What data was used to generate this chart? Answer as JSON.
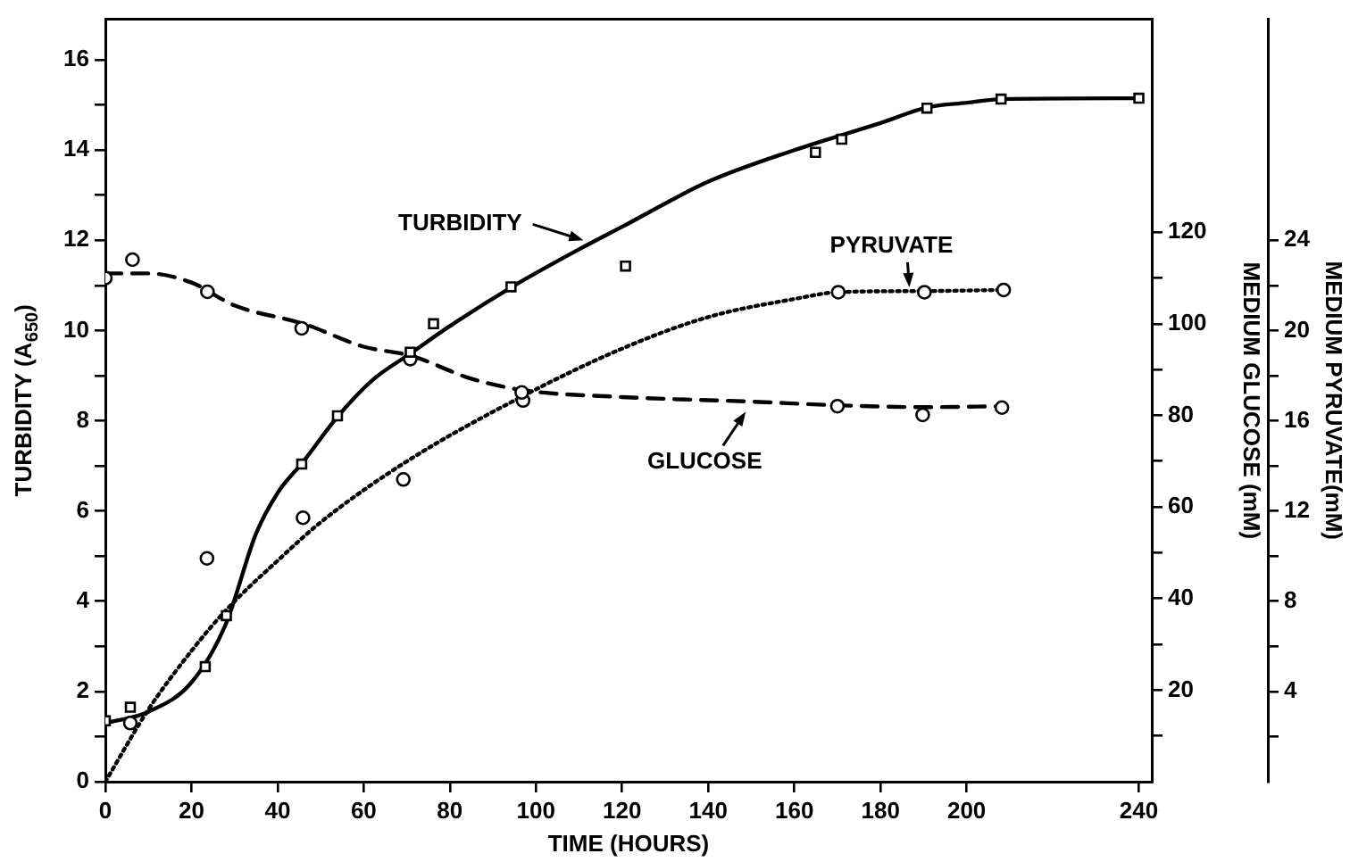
{
  "chart_data": {
    "type": "line",
    "xlabel": "TIME (HOURS)",
    "ylabel": "TURBIDITY (A$_{650}$)",
    "y2label": "MEDIUM GLUCOSE (mM)",
    "y3label": "MEDIUM PYRUVATE(mM)",
    "xlim": [
      0,
      243
    ],
    "xticks": [
      0,
      20,
      40,
      60,
      80,
      100,
      120,
      140,
      160,
      180,
      200,
      240
    ],
    "ylim": [
      0,
      16.9
    ],
    "yticks": [
      0,
      {
        "value": 1,
        "label": null
      },
      2,
      {
        "value": 3,
        "label": null
      },
      4,
      {
        "value": 5,
        "label": null
      },
      6,
      {
        "value": 7,
        "label": null
      },
      8,
      {
        "value": 9,
        "label": null
      },
      10,
      {
        "value": 11,
        "label": null
      },
      12,
      {
        "value": 13,
        "label": null
      },
      14,
      {
        "value": 15,
        "label": null
      },
      16
    ],
    "y2lim": [
      0,
      166.5
    ],
    "y2ticks": [
      {
        "value": 10,
        "label": null
      },
      20,
      {
        "value": 30,
        "label": null
      },
      40,
      {
        "value": 50,
        "label": null
      },
      60,
      {
        "value": 70,
        "label": null
      },
      80,
      {
        "value": 90,
        "label": null
      },
      100,
      {
        "value": 110,
        "label": null
      },
      120
    ],
    "y3lim": [
      0,
      33.8
    ],
    "y3ticks": [
      {
        "value": 2,
        "label": null
      },
      4,
      {
        "value": 6,
        "label": null
      },
      8,
      {
        "value": 10,
        "label": null
      },
      12,
      {
        "value": 14,
        "label": null
      },
      16,
      {
        "value": 18,
        "label": null
      },
      20,
      {
        "value": 22,
        "label": null
      },
      24
    ],
    "grid": false,
    "legend": false,
    "annotations": [
      {
        "text": "TURBIDITY",
        "x": 111,
        "y": 12.0
      },
      {
        "text": "PYRUVATE",
        "x": 186.7,
        "y": 10.96
      },
      {
        "text": "GLUCOSE",
        "x": 148.7,
        "y": 8.2
      }
    ],
    "series": [
      {
        "type": "scatter",
        "marker": "square",
        "color": "#000000",
        "x": [
          0,
          5.8,
          23.2,
          28.1,
          45.6,
          53.9,
          70.8,
          76.2,
          94.2,
          120.8,
          164.9,
          171,
          190.8,
          208,
          240
        ],
        "values": [
          1.35,
          1.65,
          2.55,
          3.68,
          7.04,
          8.11,
          9.52,
          10.15,
          10.97,
          11.43,
          13.95,
          14.24,
          14.93,
          15.13,
          15.15
        ]
      },
      {
        "marker": "none",
        "line_style": "solid",
        "color": "#000000",
        "x": [
          0,
          10,
          20,
          28,
          35,
          40,
          46,
          54,
          62,
          71,
          80,
          95,
          110,
          120,
          140,
          160,
          180,
          191,
          200,
          208,
          240
        ],
        "values": [
          1.3,
          1.55,
          2.2,
          3.5,
          5.5,
          6.4,
          7.1,
          8.1,
          8.9,
          9.5,
          10.1,
          11,
          11.8,
          12.3,
          13.3,
          14.0,
          14.6,
          14.95,
          15.05,
          15.13,
          15.15
        ]
      },
      {
        "type": "scatter",
        "marker": "circle",
        "axis": "y2",
        "color": "#000000",
        "x": [
          0,
          6.3,
          23.7,
          45.6,
          70.8,
          96.7,
          170,
          189.8,
          208.2
        ],
        "values": [
          110,
          114,
          107,
          99,
          92.3,
          85,
          82,
          80.1,
          81.7
        ]
      },
      {
        "marker": "none",
        "line_style": "dashed",
        "axis": "y2",
        "color": "#000000",
        "x": [
          0,
          10,
          20,
          30,
          46,
          60,
          71,
          85,
          97,
          120,
          150,
          170,
          190,
          209
        ],
        "values": [
          111,
          111,
          109,
          104,
          100,
          95,
          93,
          88,
          85.5,
          84,
          83,
          82.2,
          81.8,
          82
        ]
      },
      {
        "type": "scatter",
        "marker": "circle",
        "axis": "y3",
        "color": "#000000",
        "x": [
          5.8,
          23.6,
          45.9,
          69.2,
          97,
          170.2,
          190.2,
          208.6
        ],
        "values": [
          2.6,
          9.9,
          11.7,
          13.4,
          16.9,
          21.7,
          21.7,
          21.8
        ]
      },
      {
        "marker": "none",
        "line_style": "dotted",
        "axis": "y3",
        "color": "#000000",
        "x": [
          0,
          10,
          20,
          28,
          40,
          50,
          70,
          97,
          120,
          140,
          160,
          170,
          190,
          209
        ],
        "values": [
          0,
          3.2,
          5.8,
          7.6,
          9.8,
          11.5,
          14.2,
          17.1,
          19.2,
          20.6,
          21.4,
          21.7,
          21.75,
          21.8
        ]
      }
    ]
  }
}
